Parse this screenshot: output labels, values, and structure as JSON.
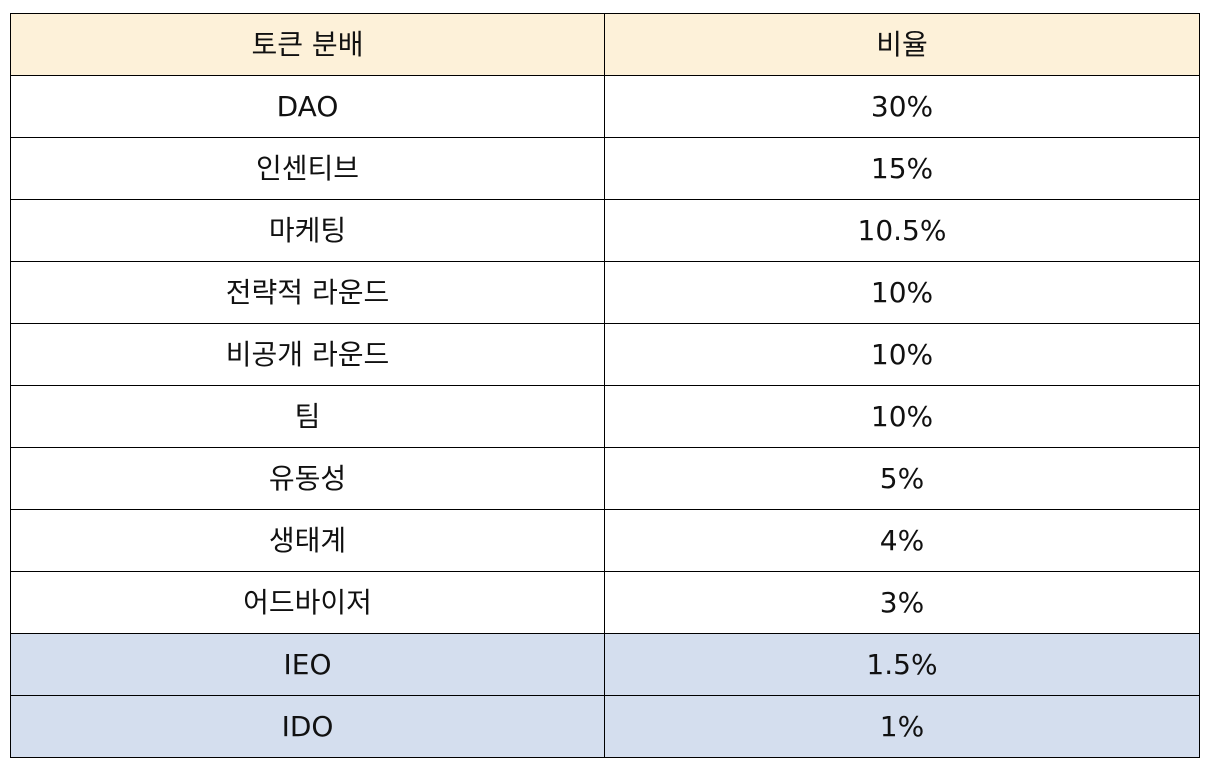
{
  "table": {
    "headers": [
      "토큰 분배",
      "비율"
    ],
    "rows": [
      {
        "name": "DAO",
        "ratio": "30%",
        "highlight": false
      },
      {
        "name": "인센티브",
        "ratio": "15%",
        "highlight": false
      },
      {
        "name": "마케팅",
        "ratio": "10.5%",
        "highlight": false
      },
      {
        "name": "전략적 라운드",
        "ratio": "10%",
        "highlight": false
      },
      {
        "name": "비공개 라운드",
        "ratio": "10%",
        "highlight": false
      },
      {
        "name": "팀",
        "ratio": "10%",
        "highlight": false
      },
      {
        "name": "유동성",
        "ratio": "5%",
        "highlight": false
      },
      {
        "name": "생태계",
        "ratio": "4%",
        "highlight": false
      },
      {
        "name": "어드바이저",
        "ratio": "3%",
        "highlight": false
      },
      {
        "name": "IEO",
        "ratio": "1.5%",
        "highlight": true
      },
      {
        "name": "IDO",
        "ratio": "1%",
        "highlight": true
      }
    ]
  },
  "colors": {
    "header_bg": "#fdf1d9",
    "highlight_bg": "#d4deee",
    "border": "#000000"
  }
}
